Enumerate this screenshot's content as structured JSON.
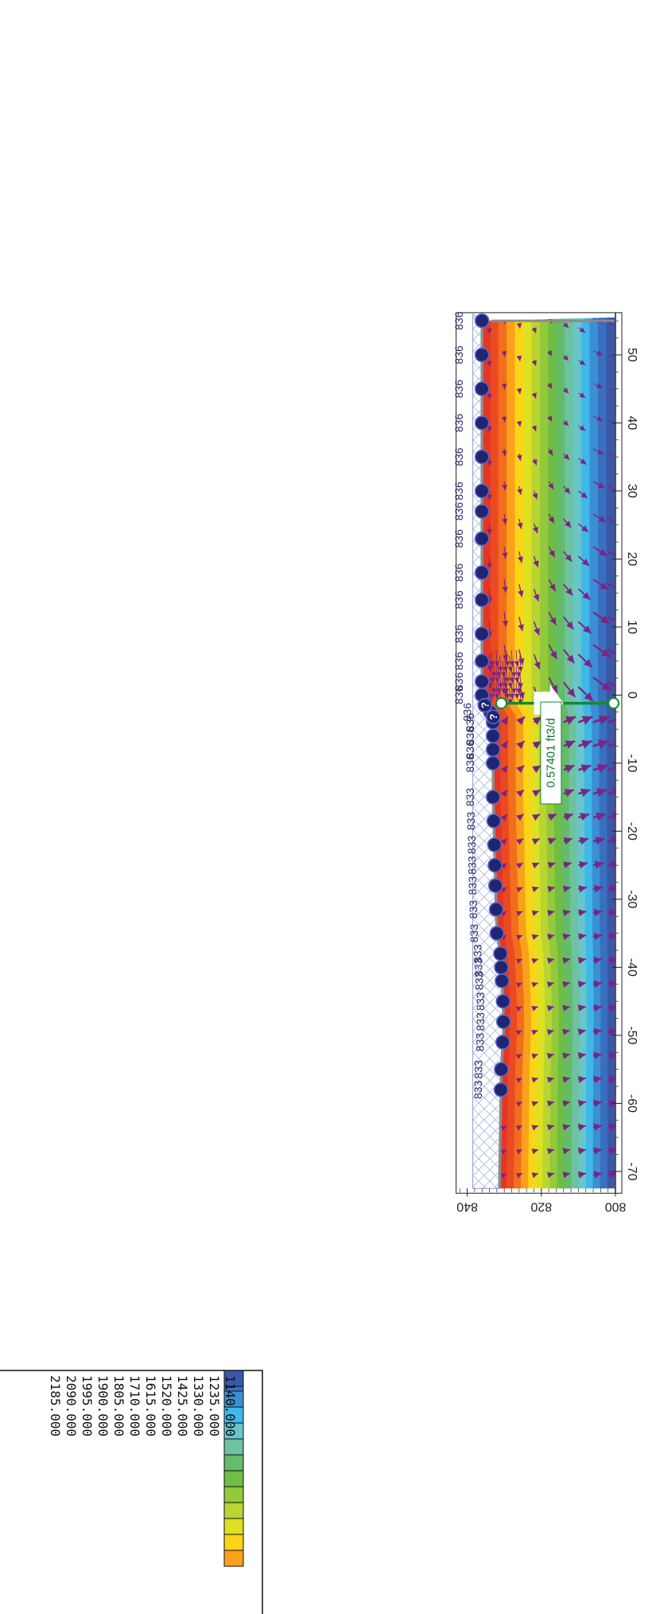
{
  "chart_data": {
    "type": "heatmap",
    "title": "",
    "xlabel": "",
    "ylabel": "",
    "x_ticks": [
      -70,
      -60,
      -50,
      -40,
      -30,
      -20,
      -10,
      0,
      10,
      20,
      30,
      40,
      50
    ],
    "y_ticks": [
      800,
      820,
      840
    ],
    "xlim": [
      -72.5,
      55.5
    ],
    "ylim": [
      800,
      843
    ],
    "legend_values": [
      "1140.000",
      "1235.000",
      "1330.000",
      "1425.000",
      "1520.000",
      "1615.000",
      "1710.000",
      "1805.000",
      "1900.000",
      "1995.000",
      "2090.000",
      "2185.000"
    ],
    "contour_colors": [
      "#e53525",
      "#ea4a22",
      "#f36e1c",
      "#f8a21b",
      "#fcd417",
      "#dde122",
      "#b8d532",
      "#93c93a",
      "#6fbd45",
      "#64bb6a",
      "#6cc39e",
      "#67c6cc",
      "#3fb8e8",
      "#3b8fd4",
      "#3a6fbf",
      "#3a58a8"
    ],
    "heads": [
      836,
      836,
      836,
      836,
      836,
      836,
      836,
      836,
      836,
      836,
      836,
      836,
      836,
      836,
      836,
      836,
      836,
      836,
      836,
      833,
      833,
      833,
      833,
      833,
      833,
      833,
      833,
      833,
      833,
      833,
      833,
      833,
      833,
      833
    ],
    "flux_section": {
      "label": "0.57401 ft3/d",
      "x": -1.2,
      "y_bottom": 800.5,
      "y_top": 830.8
    },
    "surface_profile": [
      {
        "x": 55,
        "y": 836.0
      },
      {
        "x": -1,
        "y": 836.0
      },
      {
        "x": -3,
        "y": 833.0
      },
      {
        "x": -15,
        "y": 833.0
      },
      {
        "x": -35,
        "y": 832.0
      },
      {
        "x": -38,
        "y": 831.0
      },
      {
        "x": -45,
        "y": 830.3
      },
      {
        "x": -49,
        "y": 830.2
      },
      {
        "x": -55,
        "y": 830.8
      },
      {
        "x": -72.5,
        "y": 831.3
      }
    ],
    "node_x": [
      55,
      50,
      45,
      40,
      35,
      30,
      27,
      23,
      18,
      14,
      9,
      5,
      2,
      0,
      -2.5,
      -4,
      -6,
      -8,
      -10,
      -15,
      -18.5,
      -22,
      -25,
      -28,
      -31.5,
      -35,
      -38,
      -40,
      -42,
      -45,
      -48,
      -51,
      -55,
      -58
    ]
  }
}
